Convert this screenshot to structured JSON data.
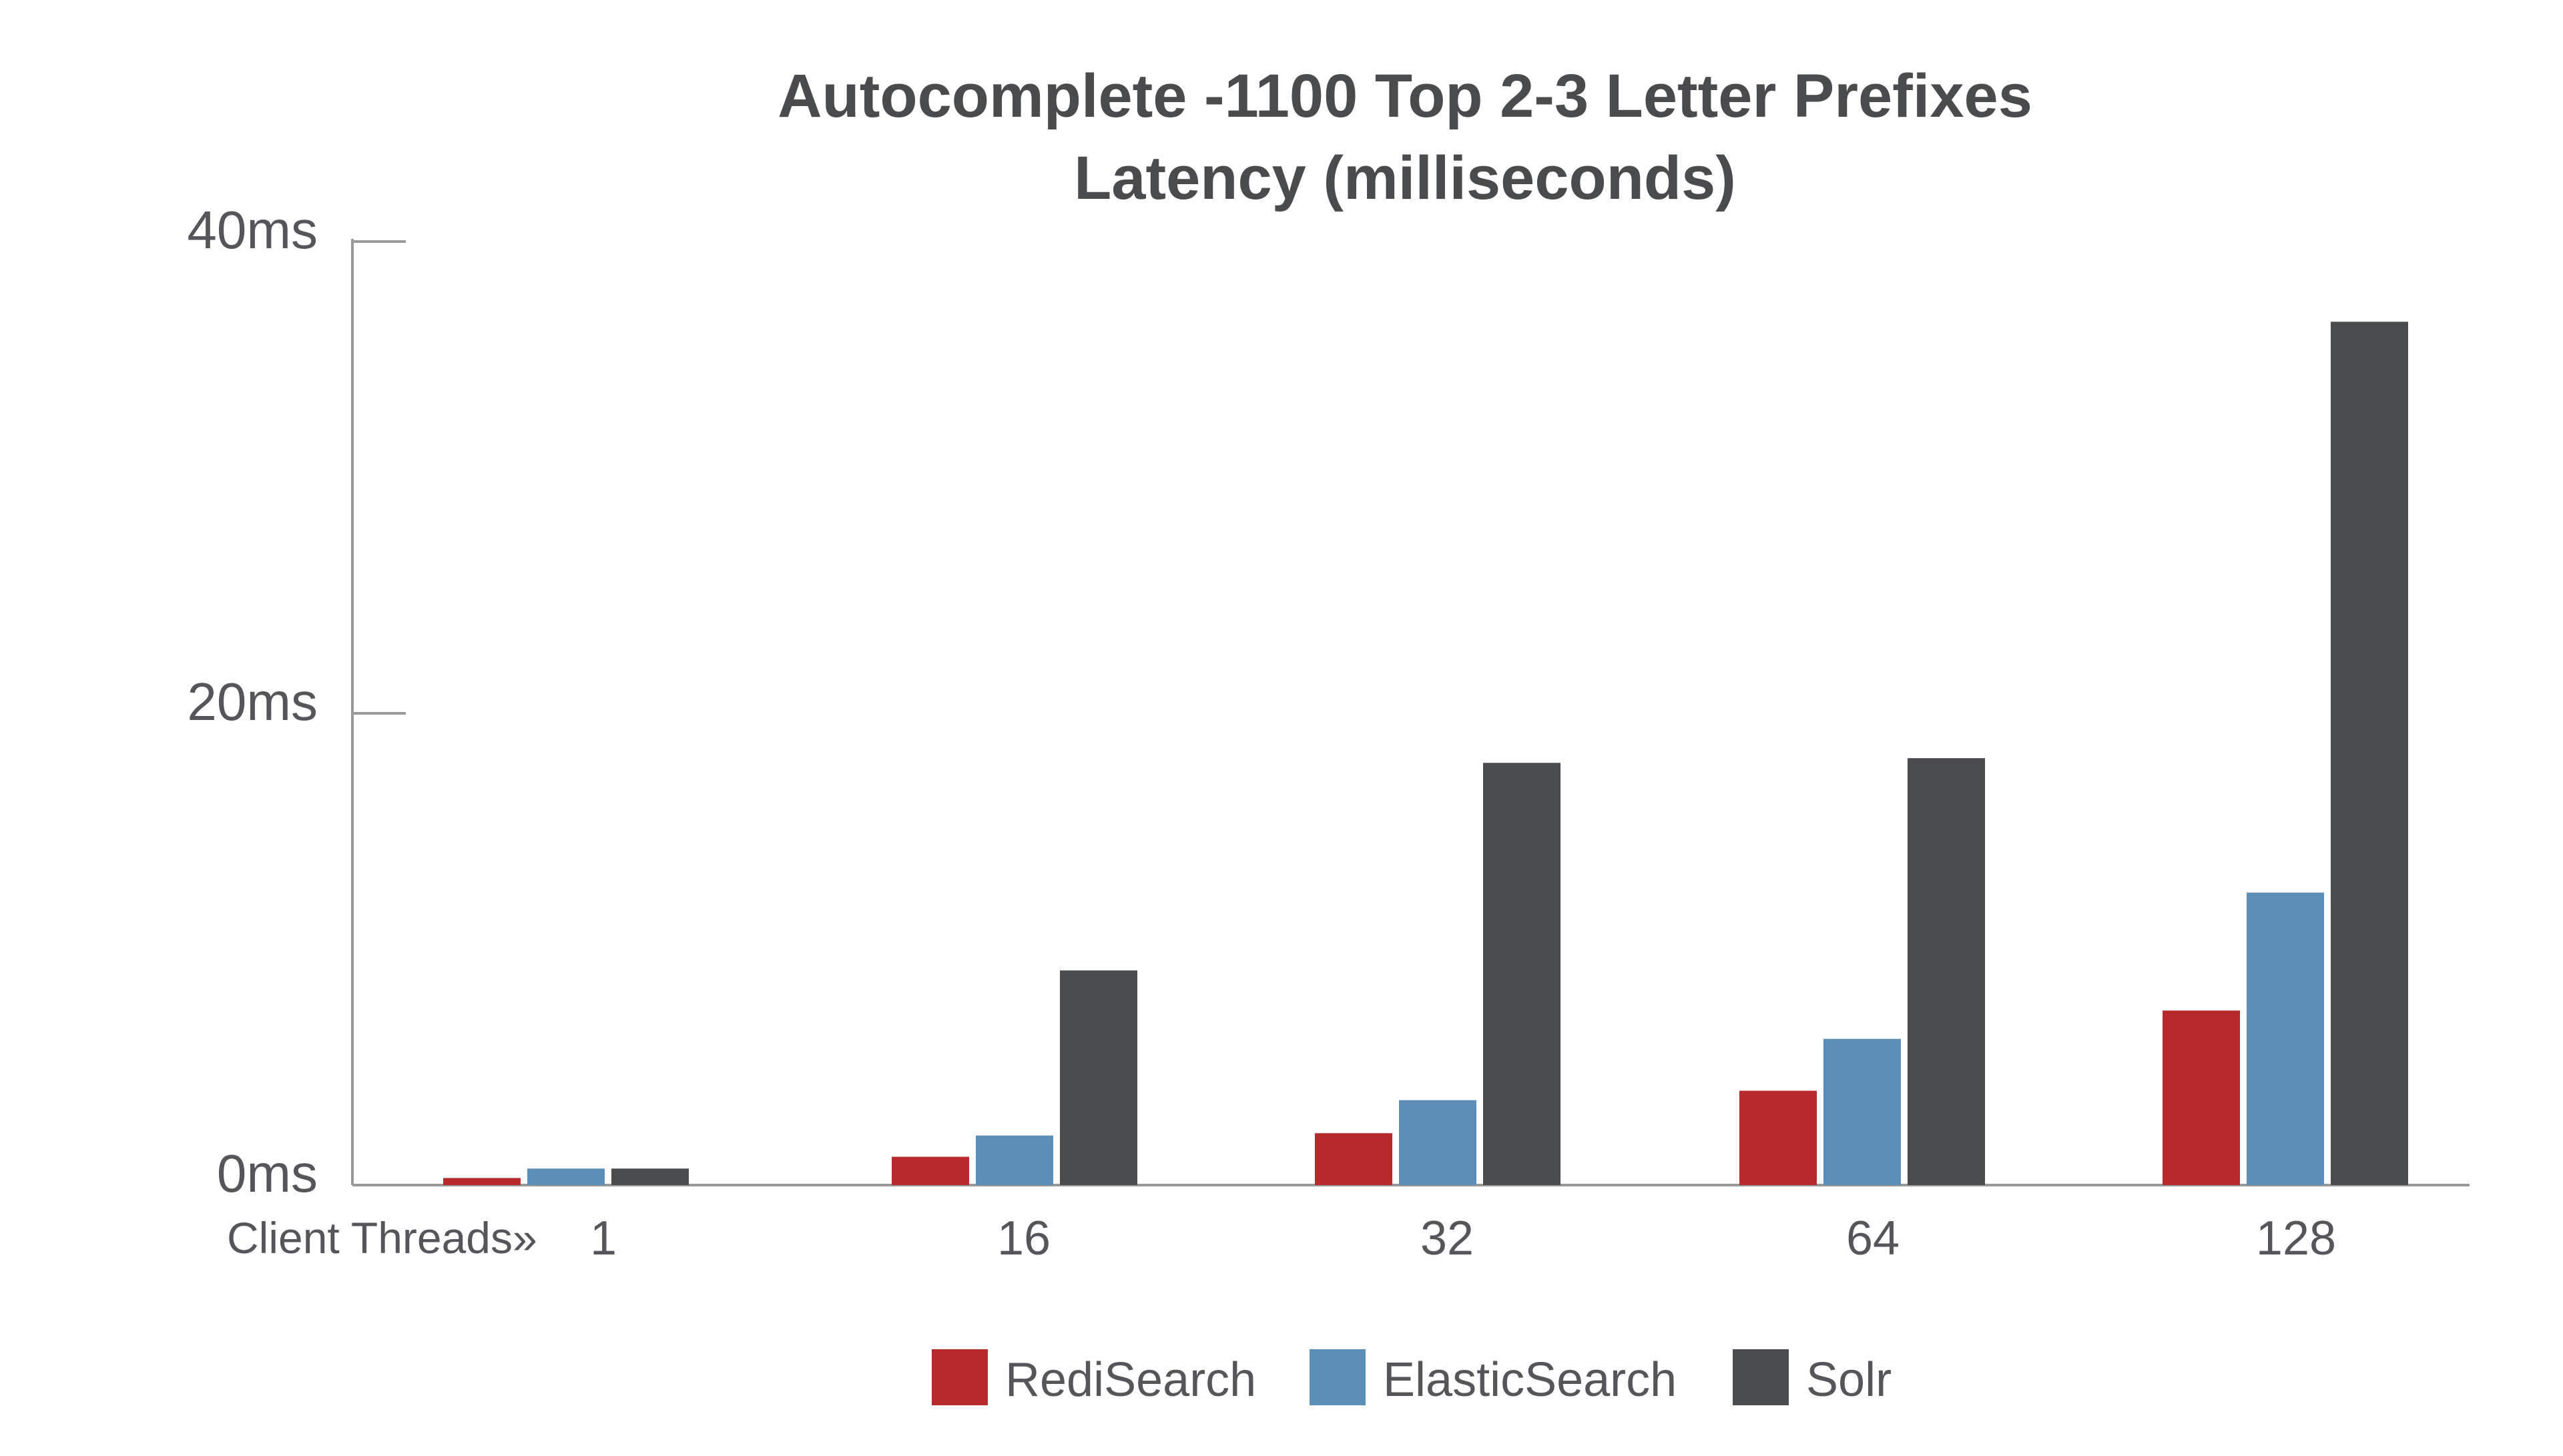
{
  "chart_data": {
    "type": "bar",
    "title": [
      "Autocomplete -1100 Top 2-3 Letter Prefixes",
      "Latency (milliseconds)"
    ],
    "xlabel": "Client Threads»",
    "ylabel": "",
    "ylim": [
      0,
      40
    ],
    "y_ticks": [
      {
        "value": 0,
        "label": "0ms"
      },
      {
        "value": 20,
        "label": "20ms"
      },
      {
        "value": 40,
        "label": "40ms"
      }
    ],
    "categories": [
      "1",
      "16",
      "32",
      "64",
      "128"
    ],
    "series": [
      {
        "name": "RediSearch",
        "color": "#b8292d",
        "values": [
          0.3,
          1.2,
          2.2,
          4.0,
          7.4
        ]
      },
      {
        "name": "ElasticSearch",
        "color": "#5b8fb7",
        "values": [
          0.7,
          2.1,
          3.6,
          6.2,
          12.4
        ]
      },
      {
        "name": "Solr",
        "color": "#4a4b4d",
        "values": [
          0.7,
          9.1,
          17.9,
          18.1,
          36.6
        ]
      }
    ],
    "grid": false,
    "legend_position": "bottom-center"
  }
}
